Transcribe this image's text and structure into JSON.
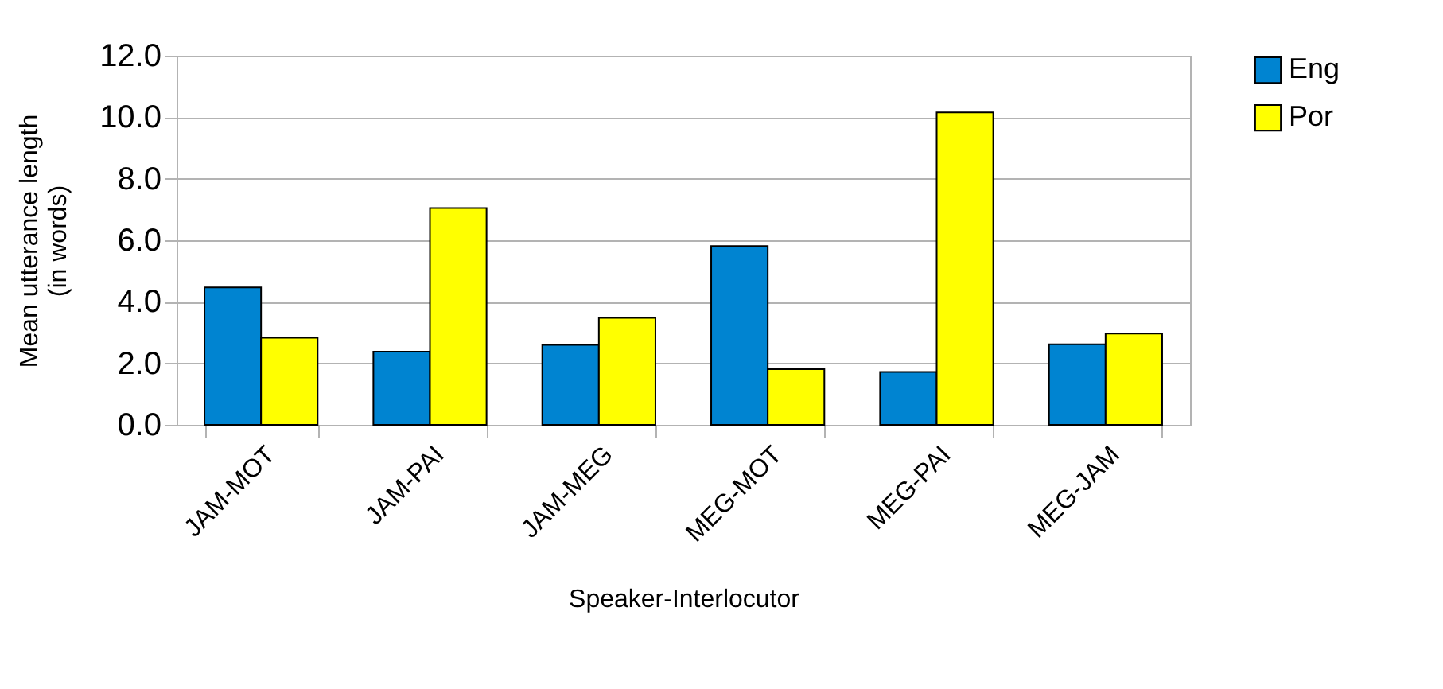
{
  "chart_data": {
    "type": "bar",
    "xlabel": "Speaker-Interlocutor",
    "ylabel": "Mean utterance length\n(in words)",
    "categories": [
      "JAM-MOT",
      "JAM-PAI",
      "JAM-MEG",
      "MEG-MOT",
      "MEG-PAI",
      "MEG-JAM"
    ],
    "series": [
      {
        "name": "Eng",
        "color": "#0084d1",
        "values": [
          4.47,
          2.38,
          2.6,
          5.81,
          1.72,
          2.62
        ]
      },
      {
        "name": "Por",
        "color": "#ffff00",
        "values": [
          2.83,
          7.05,
          3.48,
          1.81,
          10.16,
          2.97
        ]
      }
    ],
    "ylim": [
      0,
      12
    ],
    "yticks": [
      {
        "value": 0,
        "label": "0.0"
      },
      {
        "value": 2,
        "label": "2.0"
      },
      {
        "value": 4,
        "label": "4.0"
      },
      {
        "value": 6,
        "label": "6.0"
      },
      {
        "value": 8,
        "label": "8.0"
      },
      {
        "value": 10,
        "label": "10.0"
      },
      {
        "value": 12,
        "label": "12.0"
      }
    ],
    "grid": "y",
    "legend": "right"
  }
}
